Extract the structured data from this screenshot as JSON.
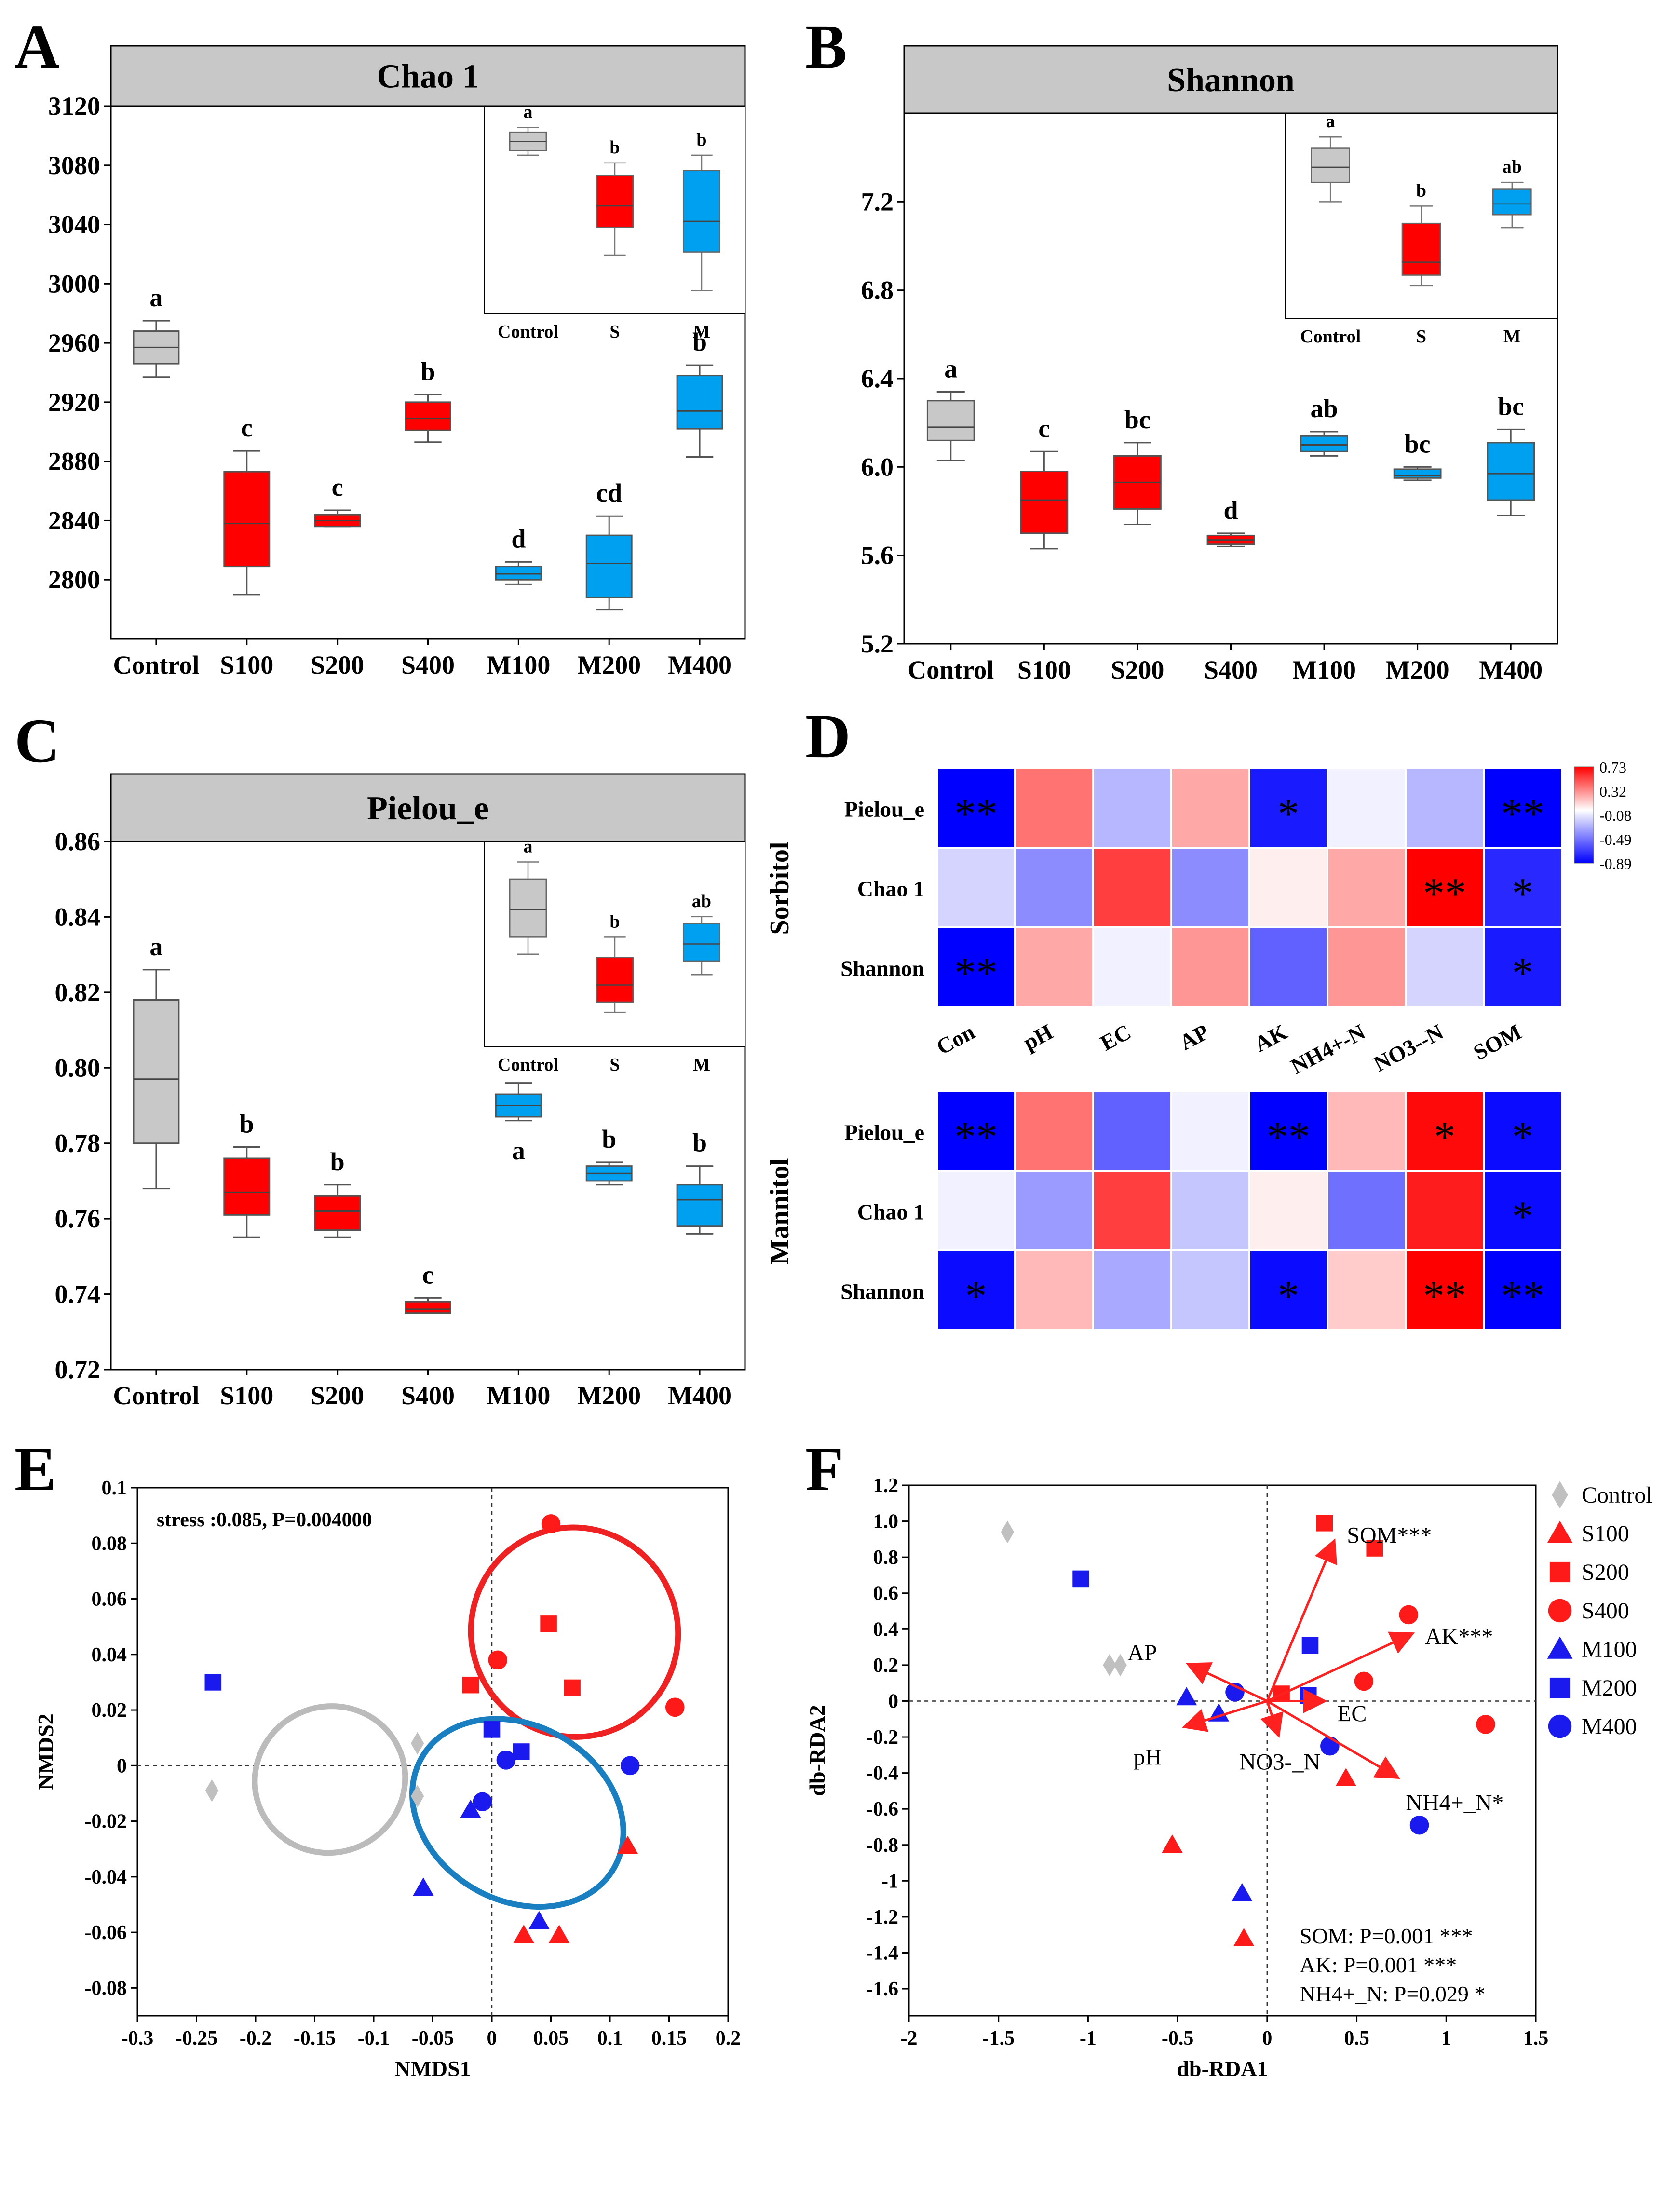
{
  "colors": {
    "control": "#c8c8c8",
    "sorbitol": "#ff0000",
    "mannitol": "#00a0f0",
    "heat_pos": "#ff0000",
    "heat_neg": "#0000ff",
    "ellipse_red": "#ee2222",
    "ellipse_blue": "#1a7fc1",
    "ellipse_grey": "#bbbbbb",
    "s_marker": "#ff1a1a",
    "m_marker": "#1a1aee"
  },
  "panels": {
    "A": "A",
    "B": "B",
    "C": "C",
    "D": "D",
    "E": "E",
    "F": "F"
  },
  "chart_data": [
    {
      "id": "A",
      "type": "box",
      "title": "Chao 1",
      "categories": [
        "Control",
        "S100",
        "S200",
        "S400",
        "M100",
        "M200",
        "M400"
      ],
      "ylim": [
        2760,
        3120
      ],
      "yticks": [
        2800,
        2840,
        2880,
        2920,
        2960,
        3000,
        3040,
        3080,
        3120
      ],
      "boxes": [
        {
          "min": 2937,
          "q1": 2946,
          "med": 2957,
          "q3": 2968,
          "max": 2975,
          "group": "control",
          "sig": "a"
        },
        {
          "min": 2790,
          "q1": 2809,
          "med": 2838,
          "q3": 2873,
          "max": 2887,
          "group": "sorbitol",
          "sig": "c"
        },
        {
          "min": 2836,
          "q1": 2836,
          "med": 2840,
          "q3": 2844,
          "max": 2847,
          "group": "sorbitol",
          "sig": "c"
        },
        {
          "min": 2893,
          "q1": 2901,
          "med": 2909,
          "q3": 2920,
          "max": 2925,
          "group": "sorbitol",
          "sig": "b"
        },
        {
          "min": 2797,
          "q1": 2800,
          "med": 2804,
          "q3": 2809,
          "max": 2812,
          "group": "mannitol",
          "sig": "d"
        },
        {
          "min": 2780,
          "q1": 2788,
          "med": 2811,
          "q3": 2830,
          "max": 2843,
          "group": "mannitol",
          "sig": "cd"
        },
        {
          "min": 2883,
          "q1": 2902,
          "med": 2914,
          "q3": 2938,
          "max": 2945,
          "group": "mannitol",
          "sig": "b"
        }
      ],
      "inset": {
        "categories": [
          "Control",
          "S",
          "M"
        ],
        "ylim": [
          2980,
          3115
        ],
        "boxes": [
          {
            "min": 3083,
            "q1": 3086,
            "med": 3092,
            "q3": 3098,
            "max": 3101,
            "group": "control",
            "sig": "a"
          },
          {
            "min": 3018,
            "q1": 3036,
            "med": 3050,
            "q3": 3070,
            "max": 3078,
            "group": "sorbitol",
            "sig": "b"
          },
          {
            "min": 2995,
            "q1": 3020,
            "med": 3040,
            "q3": 3073,
            "max": 3083,
            "group": "mannitol",
            "sig": "b"
          }
        ]
      }
    },
    {
      "id": "B",
      "type": "box",
      "title": "Shannon",
      "categories": [
        "Control",
        "S100",
        "S200",
        "S400",
        "M100",
        "M200",
        "M400"
      ],
      "ylim": [
        5.2,
        7.6
      ],
      "yticks": [
        5.2,
        5.6,
        6.0,
        6.4,
        6.8,
        7.2
      ],
      "boxes": [
        {
          "min": 6.03,
          "q1": 6.12,
          "med": 6.18,
          "q3": 6.3,
          "max": 6.34,
          "group": "control",
          "sig": "a"
        },
        {
          "min": 5.63,
          "q1": 5.7,
          "med": 5.85,
          "q3": 5.98,
          "max": 6.07,
          "group": "sorbitol",
          "sig": "c"
        },
        {
          "min": 5.74,
          "q1": 5.81,
          "med": 5.93,
          "q3": 6.05,
          "max": 6.11,
          "group": "sorbitol",
          "sig": "bc"
        },
        {
          "min": 5.64,
          "q1": 5.65,
          "med": 5.67,
          "q3": 5.69,
          "max": 5.7,
          "group": "sorbitol",
          "sig": "d"
        },
        {
          "min": 6.05,
          "q1": 6.07,
          "med": 6.1,
          "q3": 6.14,
          "max": 6.16,
          "group": "mannitol",
          "sig": "ab"
        },
        {
          "min": 5.94,
          "q1": 5.95,
          "med": 5.96,
          "q3": 5.99,
          "max": 6.0,
          "group": "mannitol",
          "sig": "bc"
        },
        {
          "min": 5.78,
          "q1": 5.85,
          "med": 5.97,
          "q3": 6.11,
          "max": 6.17,
          "group": "mannitol",
          "sig": "bc"
        }
      ],
      "inset": {
        "categories": [
          "Control",
          "S",
          "M"
        ],
        "ylim": [
          6.5,
          7.45
        ],
        "boxes": [
          {
            "min": 7.04,
            "q1": 7.13,
            "med": 7.2,
            "q3": 7.29,
            "max": 7.34,
            "group": "control",
            "sig": "a"
          },
          {
            "min": 6.65,
            "q1": 6.7,
            "med": 6.76,
            "q3": 6.94,
            "max": 7.02,
            "group": "sorbitol",
            "sig": "b"
          },
          {
            "min": 6.92,
            "q1": 6.98,
            "med": 7.03,
            "q3": 7.1,
            "max": 7.13,
            "group": "mannitol",
            "sig": "ab"
          }
        ]
      }
    },
    {
      "id": "C",
      "type": "box",
      "title": "Pielou_e",
      "categories": [
        "Control",
        "S100",
        "S200",
        "S400",
        "M100",
        "M200",
        "M400"
      ],
      "ylim": [
        0.72,
        0.86
      ],
      "yticks": [
        0.72,
        0.74,
        0.76,
        0.78,
        0.8,
        0.82,
        0.84,
        0.86
      ],
      "boxes": [
        {
          "min": 0.768,
          "q1": 0.78,
          "med": 0.797,
          "q3": 0.818,
          "max": 0.826,
          "group": "control",
          "sig": "a"
        },
        {
          "min": 0.755,
          "q1": 0.761,
          "med": 0.767,
          "q3": 0.776,
          "max": 0.779,
          "group": "sorbitol",
          "sig": "b"
        },
        {
          "min": 0.755,
          "q1": 0.757,
          "med": 0.762,
          "q3": 0.766,
          "max": 0.769,
          "group": "sorbitol",
          "sig": "b"
        },
        {
          "min": 0.735,
          "q1": 0.735,
          "med": 0.736,
          "q3": 0.738,
          "max": 0.739,
          "group": "sorbitol",
          "sig": "c"
        },
        {
          "min": 0.786,
          "q1": 0.787,
          "med": 0.79,
          "q3": 0.793,
          "max": 0.796,
          "group": "mannitol",
          "sig": "a"
        },
        {
          "min": 0.769,
          "q1": 0.77,
          "med": 0.772,
          "q3": 0.774,
          "max": 0.775,
          "group": "mannitol",
          "sig": "b"
        },
        {
          "min": 0.756,
          "q1": 0.758,
          "med": 0.765,
          "q3": 0.769,
          "max": 0.774,
          "group": "mannitol",
          "sig": "b"
        }
      ],
      "inset": {
        "categories": [
          "Control",
          "S",
          "M"
        ],
        "ylim": [
          0.8,
          0.86
        ],
        "boxes": [
          {
            "min": 0.827,
            "q1": 0.832,
            "med": 0.84,
            "q3": 0.849,
            "max": 0.854,
            "group": "control",
            "sig": "a"
          },
          {
            "min": 0.81,
            "q1": 0.813,
            "med": 0.818,
            "q3": 0.826,
            "max": 0.832,
            "group": "sorbitol",
            "sig": "b"
          },
          {
            "min": 0.821,
            "q1": 0.825,
            "med": 0.83,
            "q3": 0.836,
            "max": 0.838,
            "group": "mannitol",
            "sig": "ab"
          }
        ]
      }
    },
    {
      "id": "D",
      "type": "heatmap",
      "columns": [
        "Con",
        "pH",
        "EC",
        "AP",
        "AK",
        "NH4+-N",
        "NO3--N",
        "SOM"
      ],
      "rows": [
        "Pielou_e",
        "Chao 1",
        "Shannon"
      ],
      "colorbar": {
        "ticks": [
          "0.73",
          "0.32",
          "-0.08",
          "-0.49",
          "-0.89"
        ],
        "range": [
          -0.89,
          0.73
        ]
      },
      "groups": [
        {
          "name": "Sorbitol",
          "values": [
            [
              -0.89,
              0.4,
              -0.25,
              0.25,
              -0.8,
              -0.05,
              -0.25,
              -0.89
            ],
            [
              -0.15,
              -0.4,
              0.55,
              -0.4,
              0.05,
              0.25,
              0.73,
              -0.75
            ],
            [
              -0.89,
              0.25,
              -0.05,
              0.3,
              -0.55,
              0.3,
              -0.15,
              -0.8
            ]
          ],
          "stars": [
            [
              "**",
              "",
              "",
              "",
              "*",
              "",
              "",
              "**"
            ],
            [
              "",
              "",
              "",
              "",
              "",
              "",
              "**",
              "*"
            ],
            [
              "**",
              "",
              "",
              "",
              "",
              "",
              "",
              "*"
            ]
          ]
        },
        {
          "name": "Mannitol",
          "values": [
            [
              -0.89,
              0.4,
              -0.55,
              -0.05,
              -0.89,
              0.2,
              0.7,
              -0.85
            ],
            [
              -0.05,
              -0.35,
              0.55,
              -0.2,
              0.05,
              -0.5,
              0.65,
              -0.85
            ],
            [
              -0.85,
              0.2,
              -0.3,
              -0.2,
              -0.85,
              0.15,
              0.73,
              -0.89
            ]
          ],
          "stars": [
            [
              "**",
              "",
              "",
              "",
              "**",
              "",
              "*",
              "*"
            ],
            [
              "",
              "",
              "",
              "",
              "",
              "",
              "",
              "*"
            ],
            [
              "*",
              "",
              "",
              "",
              "*",
              "",
              "**",
              "**"
            ]
          ]
        }
      ]
    },
    {
      "id": "E",
      "type": "scatter",
      "title": "",
      "annotation": "stress :0.085, P=0.004000",
      "xlabel": "NMDS1",
      "ylabel": "NMDS2",
      "xlim": [
        -0.3,
        0.2
      ],
      "ylim": [
        -0.09,
        0.1
      ],
      "xticks": [
        "-0.3",
        "-0.25",
        "-0.2",
        "-0.15",
        "-0.1",
        "-0.05",
        "0",
        "0.05",
        "0.1",
        "0.15",
        "0.2"
      ],
      "yticks": [
        "0.1",
        "0.08",
        "0.06",
        "0.04",
        "0.02",
        "0",
        "-0.02",
        "-0.04",
        "-0.06",
        "-0.08"
      ],
      "points": [
        {
          "x": 0.05,
          "y": 0.087,
          "g": "S400"
        },
        {
          "x": 0.005,
          "y": 0.038,
          "g": "S400"
        },
        {
          "x": 0.155,
          "y": 0.021,
          "g": "S400"
        },
        {
          "x": 0.048,
          "y": 0.051,
          "g": "S200"
        },
        {
          "x": 0.068,
          "y": 0.028,
          "g": "S200"
        },
        {
          "x": -0.018,
          "y": 0.029,
          "g": "S200"
        },
        {
          "x": 0.115,
          "y": -0.029,
          "g": "S100"
        },
        {
          "x": 0.027,
          "y": -0.061,
          "g": "S100"
        },
        {
          "x": 0.057,
          "y": -0.061,
          "g": "S100"
        },
        {
          "x": -0.236,
          "y": 0.03,
          "g": "M200"
        },
        {
          "x": 0.0,
          "y": 0.013,
          "g": "M200"
        },
        {
          "x": 0.025,
          "y": 0.005,
          "g": "M200"
        },
        {
          "x": 0.012,
          "y": 0.002,
          "g": "M400"
        },
        {
          "x": 0.117,
          "y": 0.0,
          "g": "M400"
        },
        {
          "x": -0.008,
          "y": -0.013,
          "g": "M400"
        },
        {
          "x": -0.018,
          "y": -0.016,
          "g": "M100"
        },
        {
          "x": -0.058,
          "y": -0.044,
          "g": "M100"
        },
        {
          "x": 0.04,
          "y": -0.056,
          "g": "M100"
        },
        {
          "x": -0.063,
          "y": 0.008,
          "g": "Control"
        },
        {
          "x": -0.237,
          "y": -0.009,
          "g": "Control"
        },
        {
          "x": -0.063,
          "y": -0.011,
          "g": "Control"
        }
      ],
      "ellipses": [
        {
          "cx": 0.07,
          "cy": 0.048,
          "rx": 0.112,
          "ry": 0.036,
          "rot": -25,
          "color": "red"
        },
        {
          "cx": 0.022,
          "cy": -0.017,
          "rx": 0.095,
          "ry": 0.038,
          "rot": -60,
          "color": "blue"
        },
        {
          "cx": -0.137,
          "cy": -0.005,
          "rx": 0.082,
          "ry": 0.025,
          "rot": -22,
          "color": "grey"
        }
      ]
    },
    {
      "id": "F",
      "type": "scatter",
      "title": "",
      "xlabel": "db-RDA1",
      "ylabel": "db-RDA2",
      "xlim": [
        -2,
        1.5
      ],
      "ylim": [
        -1.75,
        1.2
      ],
      "xticks": [
        "-2",
        "-1.5",
        "-1",
        "-0.5",
        "0",
        "0.5",
        "1",
        "1.5"
      ],
      "yticks": [
        "1.2",
        "1.0",
        "0.8",
        "0.6",
        "0.4",
        "0.2",
        "0",
        "-0.2",
        "-0.4",
        "-0.6",
        "-0.8",
        "-1",
        "-1.2",
        "-1.4",
        "-1.6"
      ],
      "legend": [
        "Control",
        "S100",
        "S200",
        "S400",
        "M100",
        "M200",
        "M400"
      ],
      "points": [
        {
          "x": -1.45,
          "y": 0.94,
          "g": "Control"
        },
        {
          "x": -0.88,
          "y": 0.2,
          "g": "Control"
        },
        {
          "x": -0.82,
          "y": 0.2,
          "g": "Control"
        },
        {
          "x": 0.32,
          "y": 0.99,
          "g": "S200"
        },
        {
          "x": 0.6,
          "y": 0.85,
          "g": "S200"
        },
        {
          "x": 0.08,
          "y": 0.04,
          "g": "S200"
        },
        {
          "x": 0.79,
          "y": 0.48,
          "g": "S400"
        },
        {
          "x": 0.54,
          "y": 0.11,
          "g": "S400"
        },
        {
          "x": 1.22,
          "y": -0.13,
          "g": "S400"
        },
        {
          "x": 0.44,
          "y": -0.43,
          "g": "S100"
        },
        {
          "x": -0.53,
          "y": -0.8,
          "g": "S100"
        },
        {
          "x": -0.13,
          "y": -1.32,
          "g": "S100"
        },
        {
          "x": -1.04,
          "y": 0.68,
          "g": "M200"
        },
        {
          "x": 0.24,
          "y": 0.31,
          "g": "M200"
        },
        {
          "x": 0.23,
          "y": 0.03,
          "g": "M200"
        },
        {
          "x": -0.45,
          "y": 0.02,
          "g": "M100"
        },
        {
          "x": -0.27,
          "y": -0.07,
          "g": "M100"
        },
        {
          "x": -0.14,
          "y": -1.07,
          "g": "M100"
        },
        {
          "x": -0.18,
          "y": 0.05,
          "g": "M400"
        },
        {
          "x": 0.35,
          "y": -0.25,
          "g": "M400"
        },
        {
          "x": 0.85,
          "y": -0.69,
          "g": "M400"
        }
      ],
      "arrows": [
        {
          "label": "SOM***",
          "x": 0.37,
          "y": 0.88
        },
        {
          "label": "AK***",
          "x": 0.8,
          "y": 0.37
        },
        {
          "label": "AP",
          "x": -0.43,
          "y": 0.2
        },
        {
          "label": "EC",
          "x": 0.31,
          "y": 0.0
        },
        {
          "label": "pH",
          "x": -0.45,
          "y": -0.14
        },
        {
          "label": "NO3-_N",
          "x": 0.06,
          "y": -0.18
        },
        {
          "label": "NH4+_N*",
          "x": 0.72,
          "y": -0.42
        }
      ],
      "stats": [
        "SOM: P=0.001 ***",
        "AK: P=0.001 ***",
        "NH4+_N: P=0.029 *"
      ]
    }
  ]
}
